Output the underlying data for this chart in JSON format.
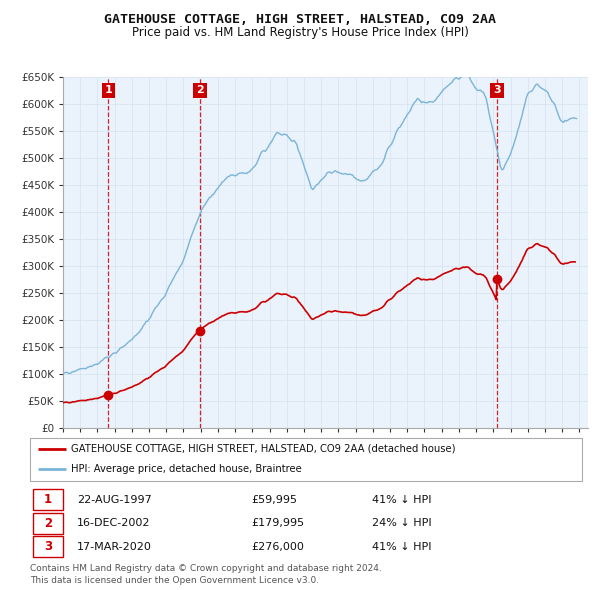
{
  "title": "GATEHOUSE COTTAGE, HIGH STREET, HALSTEAD, CO9 2AA",
  "subtitle": "Price paid vs. HM Land Registry's House Price Index (HPI)",
  "ylim": [
    0,
    650000
  ],
  "yticks": [
    0,
    50000,
    100000,
    150000,
    200000,
    250000,
    300000,
    350000,
    400000,
    450000,
    500000,
    550000,
    600000,
    650000
  ],
  "ytick_labels": [
    "£0",
    "£50K",
    "£100K",
    "£150K",
    "£200K",
    "£250K",
    "£300K",
    "£350K",
    "£400K",
    "£450K",
    "£500K",
    "£550K",
    "£600K",
    "£650K"
  ],
  "xlim_left": 1995.0,
  "xlim_right": 2025.5,
  "transactions": [
    {
      "num": 1,
      "date_str": "22-AUG-1997",
      "year": 1997.64,
      "price": 59995,
      "pct": "41%",
      "direction": "↓"
    },
    {
      "num": 2,
      "date_str": "16-DEC-2002",
      "year": 2002.96,
      "price": 179995,
      "pct": "24%",
      "direction": "↓"
    },
    {
      "num": 3,
      "date_str": "17-MAR-2020",
      "year": 2020.21,
      "price": 276000,
      "pct": "41%",
      "direction": "↓"
    }
  ],
  "hpi_line_color": "#7ab4d8",
  "price_line_color": "#cc0000",
  "vline_color": "#cc0000",
  "grid_color": "#d8e4f0",
  "background_color": "#eaf2fb",
  "legend_label_red": "GATEHOUSE COTTAGE, HIGH STREET, HALSTEAD, CO9 2AA (detached house)",
  "legend_label_blue": "HPI: Average price, detached house, Braintree",
  "footnote": "Contains HM Land Registry data © Crown copyright and database right 2024.\nThis data is licensed under the Open Government Licence v3.0."
}
